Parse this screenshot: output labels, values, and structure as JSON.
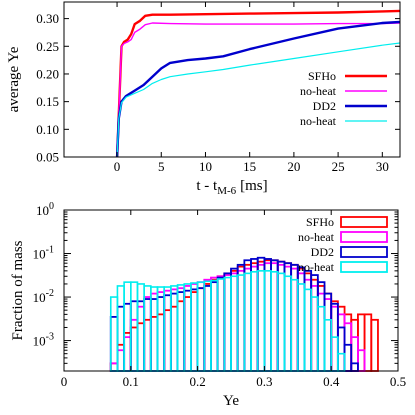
{
  "colors": {
    "sfho": "#ff0000",
    "sfho_noheat": "#ff00ff",
    "dd2": "#0000cc",
    "dd2_noheat": "#00eeee",
    "axis": "#000000",
    "background": "#ffffff"
  },
  "chart_data": [
    {
      "type": "line",
      "xlabel_main": "t - t",
      "xlabel_sub": "M-6",
      "xlabel_unit": "[ms]",
      "ylabel": "average Ye",
      "xlim": [
        -6,
        32
      ],
      "ylim": [
        0.05,
        0.33
      ],
      "xticks": [
        0,
        5,
        10,
        15,
        20,
        25,
        30
      ],
      "xtick_labels": [
        "0",
        "5",
        "10",
        "15",
        "20",
        "25",
        "30"
      ],
      "yticks": [
        0.05,
        0.1,
        0.15,
        0.2,
        0.25,
        0.3
      ],
      "ytick_labels": [
        "0.05",
        "0.10",
        "0.15",
        "0.20",
        "0.25",
        "0.30"
      ],
      "grid": false,
      "legend_position": "lower-right",
      "series": [
        {
          "name": "SFHo",
          "color": "#ff0000",
          "width": 2.4,
          "x": [
            0,
            0.25,
            0.5,
            0.8,
            1.2,
            1.6,
            2.0,
            2.6,
            3.2,
            4,
            6,
            10,
            15,
            20,
            25,
            30,
            32
          ],
          "y": [
            0.05,
            0.15,
            0.25,
            0.258,
            0.262,
            0.272,
            0.29,
            0.296,
            0.305,
            0.307,
            0.307,
            0.308,
            0.309,
            0.31,
            0.311,
            0.313,
            0.314
          ]
        },
        {
          "name": "no-heat",
          "color": "#ff00ff",
          "width": 1.4,
          "x": [
            0,
            0.25,
            0.5,
            0.8,
            1.2,
            1.6,
            2.0,
            2.6,
            3.2,
            4,
            6,
            10,
            15,
            20,
            25,
            30,
            32
          ],
          "y": [
            0.05,
            0.15,
            0.25,
            0.255,
            0.258,
            0.262,
            0.275,
            0.281,
            0.289,
            0.292,
            0.291,
            0.29,
            0.29,
            0.29,
            0.291,
            0.291,
            0.292
          ]
        },
        {
          "name": "DD2",
          "color": "#0000cc",
          "width": 2.4,
          "x": [
            0,
            0.2,
            0.5,
            1,
            2,
            3,
            4,
            5,
            6,
            8,
            10,
            12,
            15,
            20,
            25,
            30,
            32
          ],
          "y": [
            0.05,
            0.12,
            0.15,
            0.16,
            0.17,
            0.18,
            0.195,
            0.21,
            0.22,
            0.225,
            0.228,
            0.232,
            0.245,
            0.264,
            0.282,
            0.292,
            0.294
          ]
        },
        {
          "name": "no-heat",
          "color": "#00eeee",
          "width": 1.2,
          "x": [
            0,
            0.2,
            0.5,
            1,
            2,
            3,
            4,
            5,
            6,
            8,
            10,
            12,
            15,
            20,
            25,
            30,
            32
          ],
          "y": [
            0.05,
            0.12,
            0.148,
            0.158,
            0.165,
            0.172,
            0.183,
            0.19,
            0.195,
            0.2,
            0.204,
            0.208,
            0.216,
            0.228,
            0.24,
            0.252,
            0.256
          ]
        }
      ]
    },
    {
      "type": "bar",
      "subtype": "step-histogram",
      "xlabel": "Ye",
      "ylabel": "Fraction of mass",
      "log_y": true,
      "xlim": [
        0,
        0.5
      ],
      "ylim": [
        0.0002,
        1
      ],
      "xticks": [
        0,
        0.1,
        0.2,
        0.3,
        0.4,
        0.5
      ],
      "xtick_labels": [
        "0",
        "0.1",
        "0.2",
        "0.3",
        "0.4",
        "0.5"
      ],
      "yticks_exponents": [
        -3,
        -2,
        -1,
        0
      ],
      "ytick_base": "10",
      "bin_start": 0.06,
      "bin_width": 0.01,
      "grid": false,
      "legend_position": "top-right",
      "series": [
        {
          "name": "SFHo",
          "color": "#ff0000",
          "width": 1.8,
          "values": [
            0.0002,
            0.0003,
            0.0008,
            0.0015,
            0.002,
            0.0025,
            0.003,
            0.0035,
            0.004,
            0.005,
            0.006,
            0.008,
            0.01,
            0.013,
            0.016,
            0.02,
            0.025,
            0.03,
            0.035,
            0.04,
            0.05,
            0.055,
            0.06,
            0.065,
            0.07,
            0.07,
            0.065,
            0.06,
            0.055,
            0.045,
            0.035,
            0.025,
            0.018,
            0.012,
            0.008,
            0.006,
            0.004,
            0.003,
            0.004,
            0.004,
            0.003
          ]
        },
        {
          "name": "no-heat",
          "color": "#ff00ff",
          "width": 1.8,
          "values": [
            0.0002,
            0.0003,
            0.0006,
            0.0012,
            0.003,
            0.006,
            0.01,
            0.012,
            0.013,
            0.014,
            0.015,
            0.016,
            0.018,
            0.02,
            0.022,
            0.025,
            0.028,
            0.03,
            0.032,
            0.035,
            0.04,
            0.045,
            0.05,
            0.055,
            0.06,
            0.06,
            0.055,
            0.05,
            0.045,
            0.035,
            0.025,
            0.018,
            0.012,
            0.009,
            0.006,
            0.004,
            0.0025,
            0.0012,
            0.0006
          ]
        },
        {
          "name": "DD2",
          "color": "#0000cc",
          "width": 1.8,
          "values": [
            0.0002,
            0.0035,
            0.006,
            0.007,
            0.008,
            0.008,
            0.009,
            0.009,
            0.01,
            0.011,
            0.012,
            0.013,
            0.014,
            0.015,
            0.016,
            0.018,
            0.022,
            0.028,
            0.035,
            0.045,
            0.055,
            0.07,
            0.075,
            0.08,
            0.075,
            0.07,
            0.065,
            0.06,
            0.055,
            0.048,
            0.04,
            0.032,
            0.022,
            0.012,
            0.007,
            0.002,
            0.0008,
            0.0003
          ]
        },
        {
          "name": "no-heat",
          "color": "#00eeee",
          "width": 1.6,
          "values": [
            0.0002,
            0.01,
            0.018,
            0.022,
            0.022,
            0.02,
            0.018,
            0.017,
            0.017,
            0.017,
            0.018,
            0.019,
            0.02,
            0.021,
            0.022,
            0.023,
            0.024,
            0.026,
            0.028,
            0.03,
            0.032,
            0.035,
            0.038,
            0.04,
            0.04,
            0.038,
            0.035,
            0.03,
            0.025,
            0.02,
            0.015,
            0.01,
            0.006,
            0.003,
            0.0012,
            0.0005,
            0.0002
          ]
        }
      ]
    }
  ]
}
